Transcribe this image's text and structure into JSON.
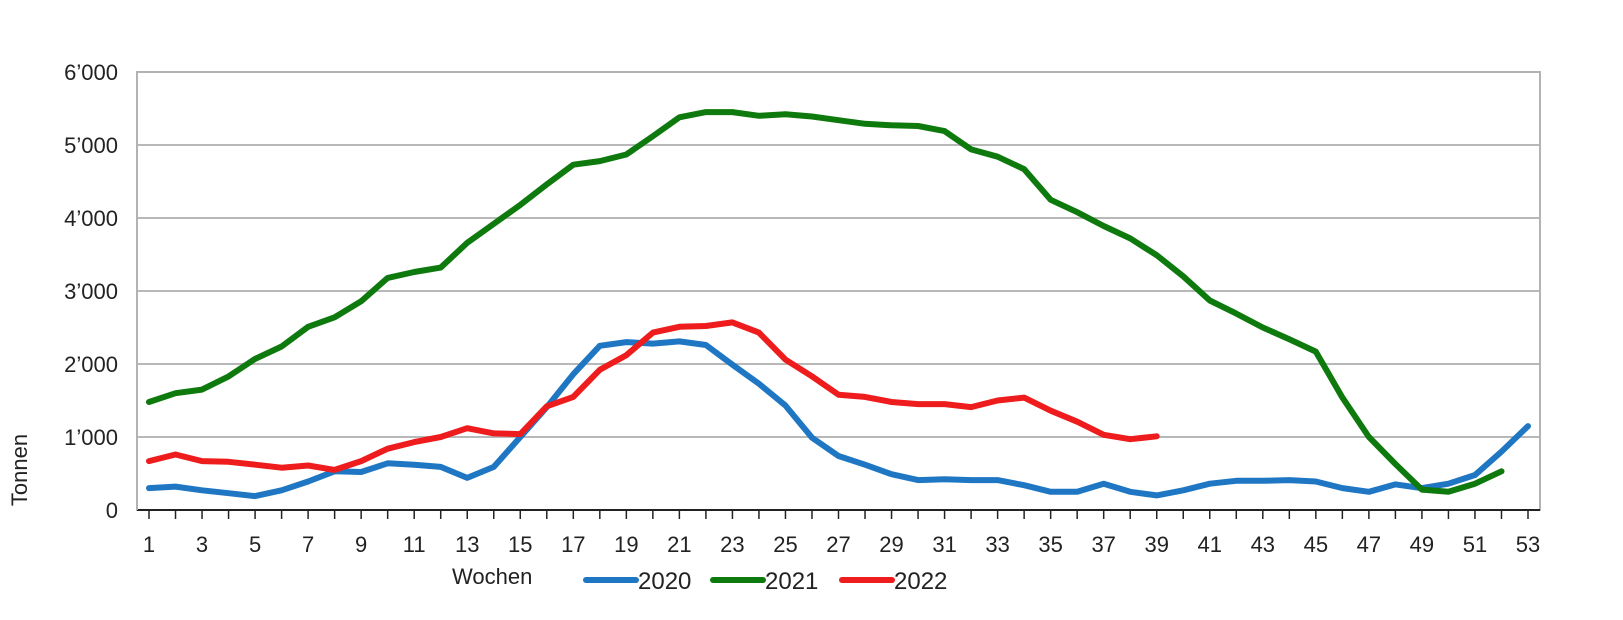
{
  "chart_data": {
    "type": "line",
    "xlabel": "Wochen",
    "ylabel": "Tonnen",
    "xlim": [
      1,
      53
    ],
    "ylim": [
      0,
      6000
    ],
    "x_ticks": [
      1,
      3,
      5,
      7,
      9,
      11,
      13,
      15,
      17,
      19,
      21,
      23,
      25,
      27,
      29,
      31,
      33,
      35,
      37,
      39,
      41,
      43,
      45,
      47,
      49,
      51,
      53
    ],
    "x_tick_labels": [
      "1",
      "3",
      "5",
      "7",
      "9",
      "11",
      "13",
      "15",
      "17",
      "19",
      "21",
      "23",
      "25",
      "27",
      "29",
      "31",
      "33",
      "35",
      "37",
      "39",
      "41",
      "43",
      "45",
      "47",
      "49",
      "51",
      "53"
    ],
    "y_ticks": [
      0,
      1000,
      2000,
      3000,
      4000,
      5000,
      6000
    ],
    "y_tick_labels": [
      "0",
      "1’000",
      "2’000",
      "3’000",
      "4’000",
      "5’000",
      "6’000"
    ],
    "grid": "horizontal",
    "legend_position": "bottom",
    "series": [
      {
        "name": "2020",
        "color": "#1f77c4",
        "x": [
          1,
          2,
          3,
          4,
          5,
          6,
          7,
          8,
          9,
          10,
          11,
          12,
          13,
          14,
          15,
          16,
          17,
          18,
          19,
          20,
          21,
          22,
          23,
          24,
          25,
          26,
          27,
          28,
          29,
          30,
          31,
          32,
          33,
          34,
          35,
          36,
          37,
          38,
          39,
          40,
          41,
          42,
          43,
          44,
          45,
          46,
          47,
          48,
          49,
          50,
          51,
          52,
          53
        ],
        "values": [
          300,
          320,
          270,
          230,
          190,
          270,
          390,
          530,
          520,
          640,
          620,
          590,
          440,
          590,
          1000,
          1410,
          1860,
          2250,
          2300,
          2280,
          2310,
          2260,
          1990,
          1730,
          1430,
          990,
          740,
          620,
          490,
          410,
          420,
          410,
          410,
          340,
          250,
          250,
          360,
          250,
          200,
          270,
          360,
          400,
          400,
          410,
          390,
          300,
          250,
          350,
          300,
          360,
          480,
          800,
          1150
        ]
      },
      {
        "name": "2021",
        "color": "#0e7a0d",
        "x": [
          1,
          2,
          3,
          4,
          5,
          6,
          7,
          8,
          9,
          10,
          11,
          12,
          13,
          14,
          15,
          16,
          17,
          18,
          19,
          20,
          21,
          22,
          23,
          24,
          25,
          26,
          27,
          28,
          29,
          30,
          31,
          32,
          33,
          34,
          35,
          36,
          37,
          38,
          39,
          40,
          41,
          42,
          43,
          44,
          45,
          46,
          47,
          48,
          49,
          50,
          51,
          52
        ],
        "values": [
          1480,
          1600,
          1650,
          1830,
          2070,
          2240,
          2510,
          2640,
          2860,
          3180,
          3260,
          3320,
          3660,
          3920,
          4180,
          4460,
          4730,
          4780,
          4870,
          5120,
          5380,
          5450,
          5450,
          5400,
          5420,
          5390,
          5340,
          5290,
          5270,
          5260,
          5190,
          4940,
          4840,
          4670,
          4250,
          4080,
          3890,
          3720,
          3490,
          3200,
          2870,
          2690,
          2500,
          2340,
          2170,
          1540,
          1000,
          630,
          280,
          250,
          360,
          530
        ]
      },
      {
        "name": "2022",
        "color": "#ee1c1c",
        "x": [
          1,
          2,
          3,
          4,
          5,
          6,
          7,
          8,
          9,
          10,
          11,
          12,
          13,
          14,
          15,
          16,
          17,
          18,
          19,
          20,
          21,
          22,
          23,
          24,
          25,
          26,
          27,
          28,
          29,
          30,
          31,
          32,
          33,
          34,
          35,
          36,
          37,
          38,
          39
        ],
        "values": [
          670,
          760,
          670,
          660,
          620,
          580,
          610,
          550,
          670,
          840,
          930,
          1000,
          1120,
          1050,
          1040,
          1420,
          1550,
          1920,
          2120,
          2430,
          2510,
          2520,
          2570,
          2430,
          2060,
          1830,
          1580,
          1550,
          1480,
          1450,
          1450,
          1410,
          1500,
          1540,
          1360,
          1210,
          1030,
          970,
          1010
        ]
      }
    ]
  }
}
